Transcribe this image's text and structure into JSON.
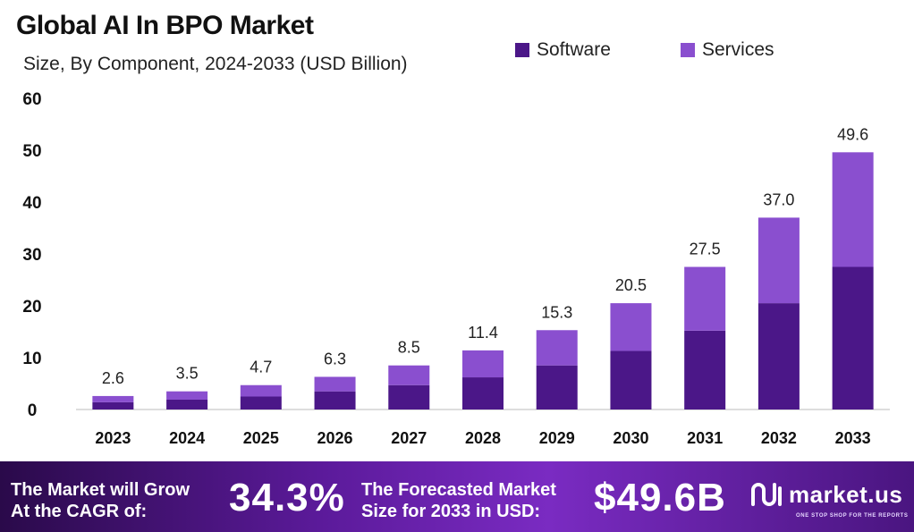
{
  "header": {
    "title": "Global AI In BPO Market",
    "subtitle": "Size, By Component, 2024-2033 (USD Billion)"
  },
  "legend": {
    "items": [
      {
        "label": "Software",
        "color": "#4b1788"
      },
      {
        "label": "Services",
        "color": "#8a4fcf"
      }
    ],
    "placement": "top-right"
  },
  "chart_data": {
    "type": "bar",
    "stacked": true,
    "title": "Global AI In BPO Market",
    "subtitle": "Size, By Component, 2024-2033 (USD Billion)",
    "xlabel": "",
    "ylabel": "",
    "ylim": [
      0,
      60
    ],
    "yticks": [
      0,
      10,
      20,
      30,
      40,
      50,
      60
    ],
    "grid": false,
    "categories": [
      "2023",
      "2024",
      "2025",
      "2026",
      "2027",
      "2028",
      "2029",
      "2030",
      "2031",
      "2032",
      "2033"
    ],
    "series": [
      {
        "name": "Software",
        "color": "#4b1788",
        "values": [
          1.4,
          1.9,
          2.5,
          3.5,
          4.7,
          6.2,
          8.5,
          11.3,
          15.2,
          20.5,
          27.5
        ]
      },
      {
        "name": "Services",
        "color": "#8a4fcf",
        "values": [
          1.2,
          1.6,
          2.2,
          2.8,
          3.8,
          5.2,
          6.8,
          9.2,
          12.3,
          16.5,
          22.1
        ]
      }
    ],
    "totals": [
      2.6,
      3.5,
      4.7,
      6.3,
      8.5,
      11.4,
      15.3,
      20.5,
      27.5,
      37.0,
      49.6
    ],
    "total_labels": [
      "2.6",
      "3.5",
      "4.7",
      "6.3",
      "8.5",
      "11.4",
      "15.3",
      "20.5",
      "27.5",
      "37.0",
      "49.6"
    ]
  },
  "footer": {
    "cagr_label_line1": "The Market will Grow",
    "cagr_label_line2": "At the CAGR of:",
    "cagr_value": "34.3%",
    "forecast_label_line1": "The Forecasted Market",
    "forecast_label_line2": "Size for 2033 in USD:",
    "forecast_value": "$49.6B",
    "brand_name": "market.us",
    "brand_tagline": "ONE STOP SHOP FOR THE REPORTS",
    "brand_icon": "market-us-logo-icon"
  }
}
